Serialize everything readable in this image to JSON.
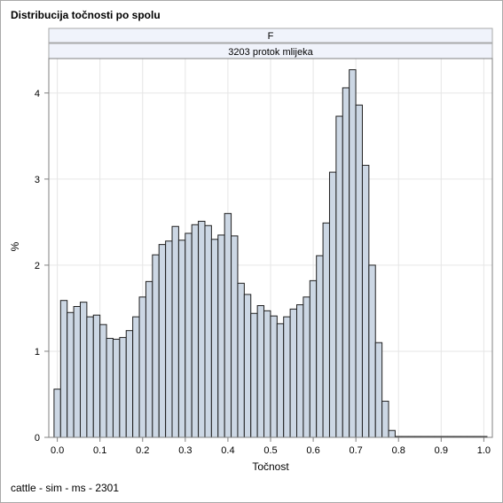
{
  "chart_data": {
    "type": "bar",
    "title": "Distribucija točnosti po spolu",
    "panel_headers": [
      "F",
      "3203 protok mlijeka"
    ],
    "xlabel": "Točnost",
    "ylabel": "%",
    "xlim": [
      -0.02,
      1.02
    ],
    "ylim": [
      0,
      4.4
    ],
    "xticks": [
      "0.0",
      "0.1",
      "0.2",
      "0.3",
      "0.4",
      "0.5",
      "0.6",
      "0.7",
      "0.8",
      "0.9",
      "1.0"
    ],
    "xtick_values": [
      0,
      0.1,
      0.2,
      0.3,
      0.4,
      0.5,
      0.6,
      0.7,
      0.8,
      0.9,
      1.0
    ],
    "yticks": [
      "0",
      "1",
      "2",
      "3",
      "4"
    ],
    "ytick_values": [
      0,
      1,
      2,
      3,
      4
    ],
    "grid": true,
    "bin_width": 0.01538,
    "bin_start": -0.00769,
    "values": [
      0.56,
      1.59,
      1.45,
      1.52,
      1.57,
      1.4,
      1.42,
      1.31,
      1.15,
      1.14,
      1.16,
      1.24,
      1.4,
      1.63,
      1.81,
      2.12,
      2.24,
      2.28,
      2.45,
      2.29,
      2.37,
      2.47,
      2.51,
      2.46,
      2.3,
      2.35,
      2.6,
      2.34,
      1.79,
      1.66,
      1.44,
      1.53,
      1.47,
      1.41,
      1.32,
      1.4,
      1.49,
      1.54,
      1.63,
      1.82,
      2.11,
      2.49,
      3.08,
      3.73,
      4.06,
      4.27,
      3.86,
      3.16,
      2.0,
      1.1,
      0.42,
      0.08,
      0.01,
      0.01,
      0.01,
      0.01,
      0.01,
      0.01,
      0.01,
      0.01,
      0.01,
      0.01,
      0.01,
      0.01,
      0.01,
      0.01
    ],
    "colors": {
      "bar_fill": "#ccd7e4",
      "bar_stroke": "#1f1f1f",
      "grid": "#e6e6e6",
      "axis": "#808080",
      "header_fill": "#f0f3fb"
    }
  },
  "footnote": "cattle - sim - ms - 2301"
}
